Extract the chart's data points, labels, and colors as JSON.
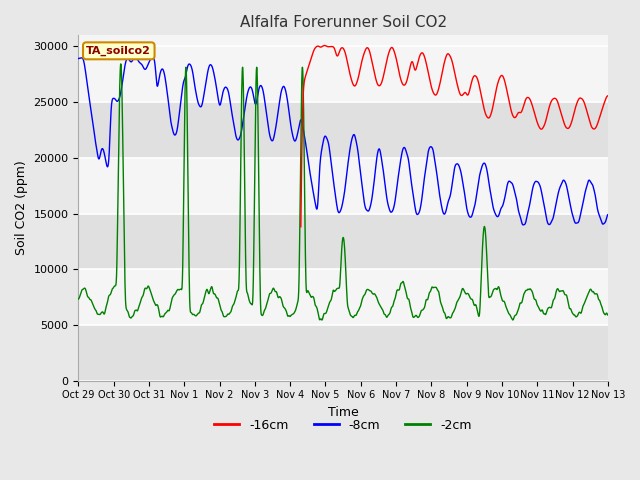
{
  "title": "Alfalfa Forerunner Soil CO2",
  "xlabel": "Time",
  "ylabel": "Soil CO2 (ppm)",
  "ylim": [
    0,
    31000
  ],
  "yticks": [
    0,
    5000,
    10000,
    15000,
    20000,
    25000,
    30000
  ],
  "legend_labels": [
    "-16cm",
    "-8cm",
    "-2cm"
  ],
  "legend_colors": [
    "red",
    "blue",
    "green"
  ],
  "xtick_labels": [
    "Oct 29",
    "Oct 30",
    "Oct 31",
    "Nov 1",
    "Nov 2",
    "Nov 3",
    "Nov 4",
    "Nov 5",
    "Nov 6",
    "Nov 7",
    "Nov 8",
    "Nov 9",
    "Nov 10",
    "Nov 11",
    "Nov 12",
    "Nov 13"
  ],
  "label_box_text": "TA_soilco2",
  "label_box_color": "#ffffcc",
  "label_box_edge": "#cc8800",
  "bg_color": "#e8e8e8",
  "plot_bg_color": "#f5f5f5",
  "grid_color": "white",
  "title_color": "#333333",
  "figsize": [
    6.4,
    4.8
  ],
  "dpi": 100
}
